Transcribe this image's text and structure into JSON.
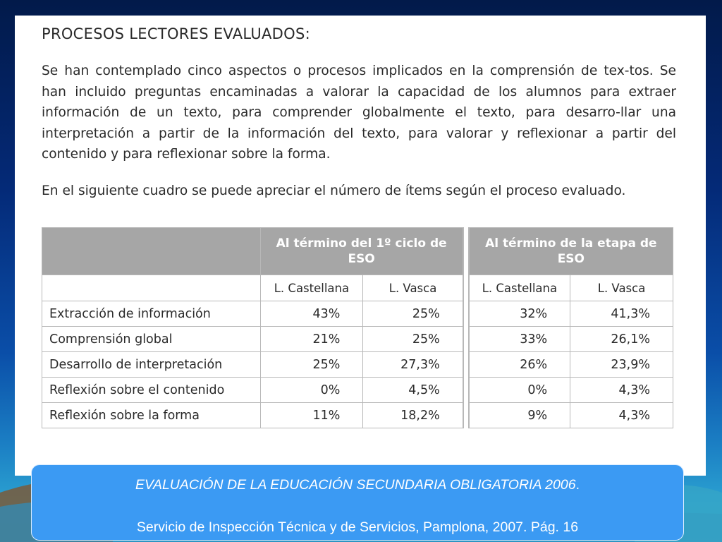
{
  "document": {
    "title": "PROCESOS LECTORES EVALUADOS:",
    "paragraph1": "Se han contemplado cinco aspectos o procesos implicados en la comprensión de tex-tos. Se han incluido preguntas encaminadas a valorar la capacidad de los alumnos para extraer información de un texto, para comprender globalmente el texto, para desarro-llar una interpretación a partir de la información del texto, para valorar y reflexionar a partir del contenido y para reflexionar sobre la forma.",
    "paragraph2": "En el siguiente cuadro se puede apreciar el número de ítems según el proceso evaluado."
  },
  "table": {
    "group_headers": [
      "Al término del 1º ciclo de ESO",
      "Al término de la etapa de ESO"
    ],
    "sub_headers": [
      "L. Castellana",
      "L. Vasca",
      "L. Castellana",
      "L. Vasca"
    ],
    "rows": [
      {
        "label": "Extracción de información",
        "values": [
          "43%",
          "25%",
          "32%",
          "41,3%"
        ]
      },
      {
        "label": "Comprensión global",
        "values": [
          "21%",
          "25%",
          "33%",
          "26,1%"
        ]
      },
      {
        "label": "Desarrollo de interpretación",
        "values": [
          "25%",
          "27,3%",
          "26%",
          "23,9%"
        ]
      },
      {
        "label": "Reflexión sobre el contenido",
        "values": [
          "0%",
          "4,5%",
          "0%",
          "4,3%"
        ]
      },
      {
        "label": "Reflexión sobre la forma",
        "values": [
          "11%",
          "18,2%",
          "9%",
          "4,3%"
        ]
      }
    ]
  },
  "caption": {
    "line1_italic": "EVALUACIÓN DE LA EDUCACIÓN SECUNDARIA OBLIGATORIA 2006",
    "line1_end": ".",
    "line2": "Servicio de Inspección Técnica y de Servicios, Pamplona, 2007. Pág. 16"
  },
  "colors": {
    "header_fill": "#a6a6a6",
    "caption_fill": "#3b9af3",
    "background_top": "#021a4a",
    "background_bottom": "#2fa6c8"
  }
}
